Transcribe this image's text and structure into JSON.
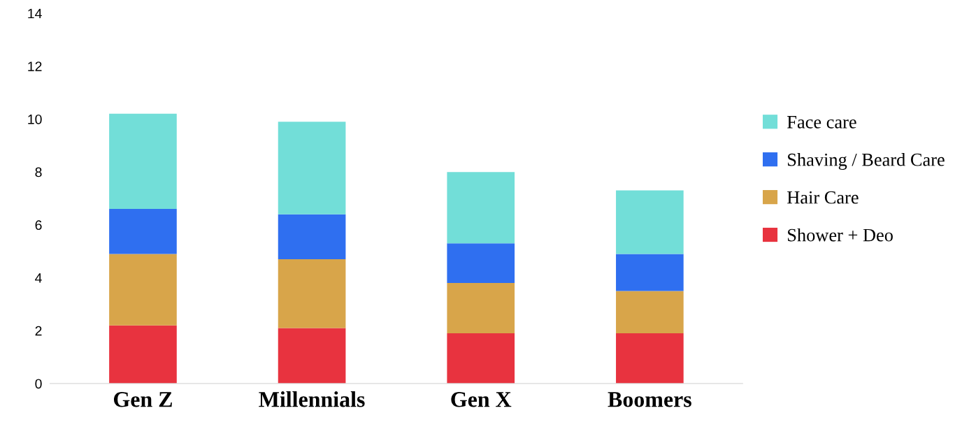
{
  "chart_data": {
    "type": "bar",
    "stacked": true,
    "categories": [
      "Gen Z",
      "Millennials",
      "Gen X",
      "Boomers"
    ],
    "series": [
      {
        "name": "Shower + Deo",
        "color": "#e8333f",
        "values": [
          2.2,
          2.1,
          1.9,
          1.9
        ]
      },
      {
        "name": "Hair Care",
        "color": "#d8a54a",
        "values": [
          2.7,
          2.6,
          1.9,
          1.6
        ]
      },
      {
        "name": "Shaving / Beard Care",
        "color": "#2f6ff0",
        "values": [
          1.7,
          1.7,
          1.5,
          1.4
        ]
      },
      {
        "name": "Face care",
        "color": "#72ded8",
        "values": [
          3.6,
          3.5,
          2.7,
          2.4
        ]
      }
    ],
    "ylim": [
      0,
      14
    ],
    "yticks": [
      0,
      2,
      4,
      6,
      8,
      10,
      12,
      14
    ],
    "grid": false,
    "legend": "right"
  }
}
